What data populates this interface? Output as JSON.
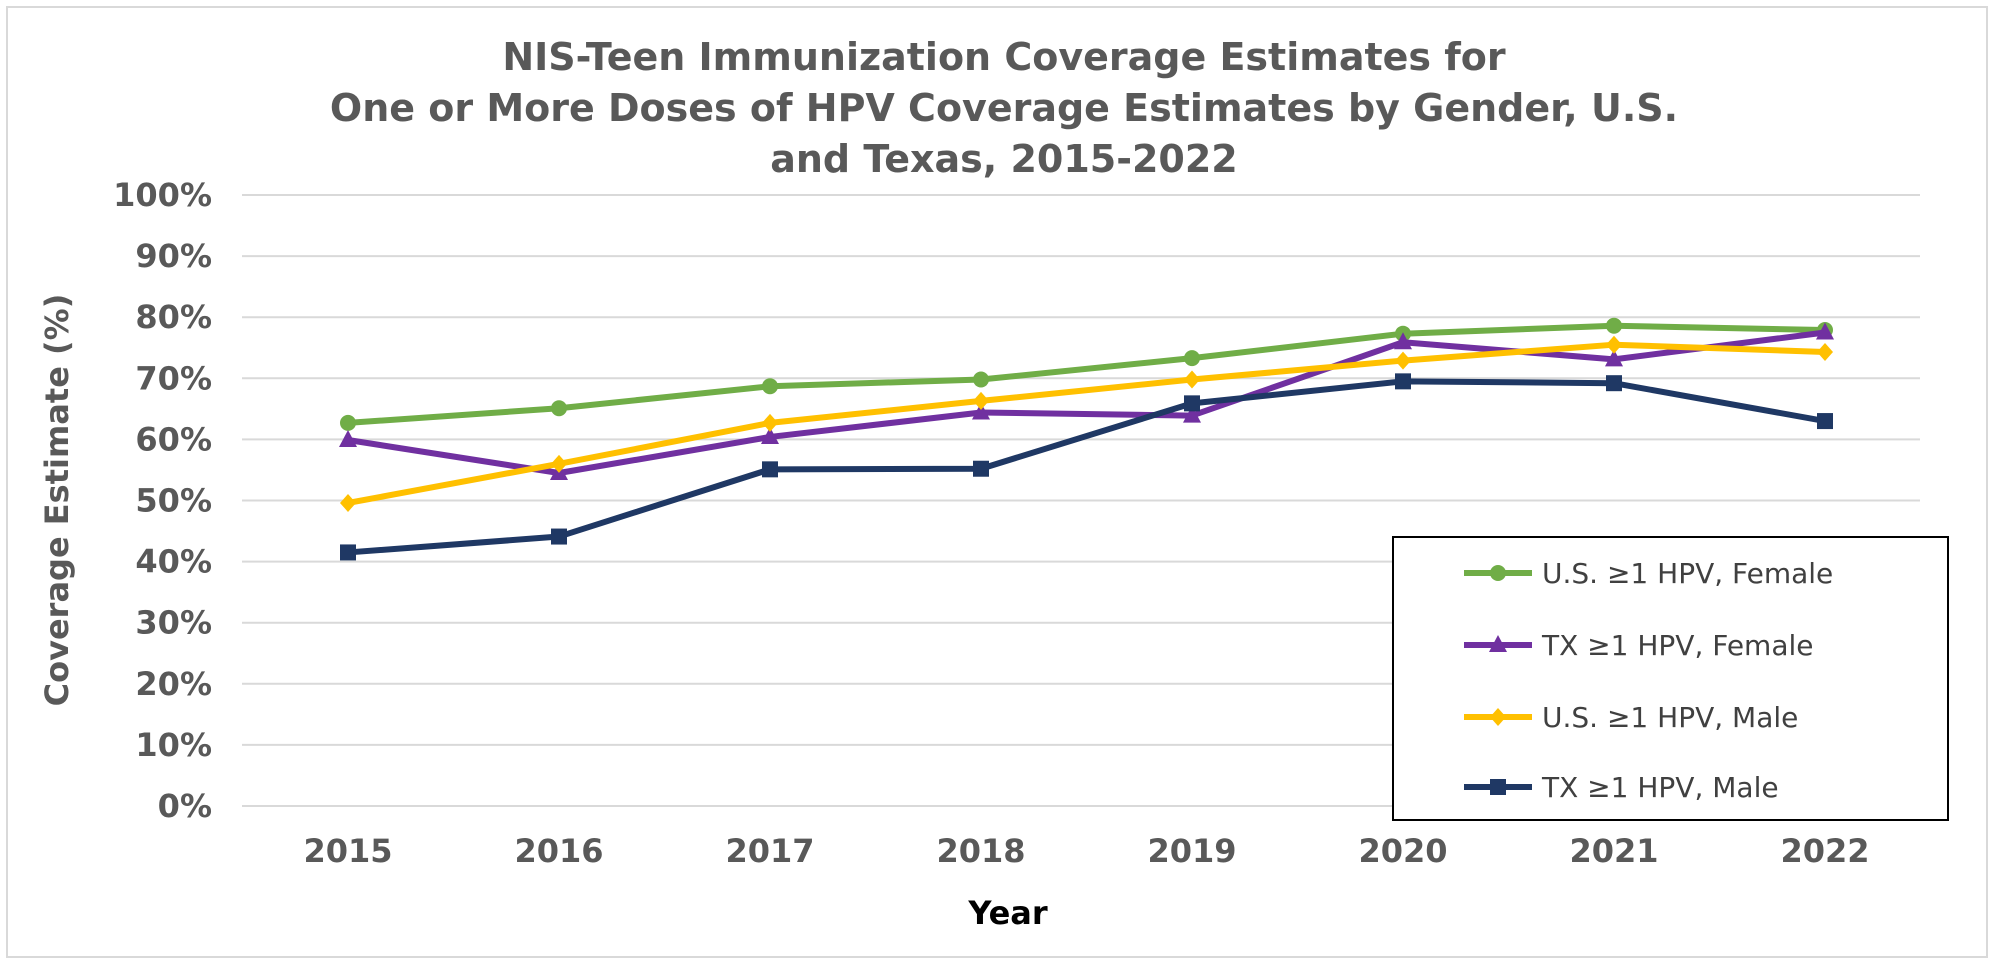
{
  "chart_data": {
    "type": "line",
    "title": [
      "NIS-Teen Immunization Coverage Estimates for",
      "One or More Doses of HPV Coverage Estimates by Gender, U.S.",
      "and Texas, 2015-2022"
    ],
    "xlabel": "Year",
    "ylabel": "Coverage Estimate (%)",
    "categories": [
      "2015",
      "2016",
      "2017",
      "2018",
      "2019",
      "2020",
      "2021",
      "2022"
    ],
    "ylim": [
      0,
      100
    ],
    "yticks": [
      "0%",
      "10%",
      "20%",
      "30%",
      "40%",
      "50%",
      "60%",
      "70%",
      "80%",
      "90%",
      "100%"
    ],
    "grid": true,
    "legend_position": "bottom-right",
    "series": [
      {
        "name": "U.S. ≥1 HPV, Female",
        "color": "#70AD47",
        "marker": "circle",
        "values": [
          62.7,
          65.1,
          68.7,
          69.8,
          73.3,
          77.3,
          78.6,
          77.9
        ]
      },
      {
        "name": "TX ≥1 HPV, Female",
        "color": "#7030A0",
        "marker": "triangle",
        "values": [
          59.9,
          54.5,
          60.4,
          64.4,
          63.9,
          75.9,
          73.1,
          77.5
        ]
      },
      {
        "name": "U.S. ≥1 HPV, Male",
        "color": "#FFC000",
        "marker": "diamond",
        "values": [
          49.6,
          56.0,
          62.7,
          66.3,
          69.8,
          72.9,
          75.5,
          74.3
        ]
      },
      {
        "name": "TX ≥1 HPV, Male",
        "color": "#1F3864",
        "marker": "square",
        "values": [
          41.5,
          44.1,
          55.1,
          55.2,
          65.9,
          69.5,
          69.2,
          63.0
        ]
      }
    ]
  }
}
